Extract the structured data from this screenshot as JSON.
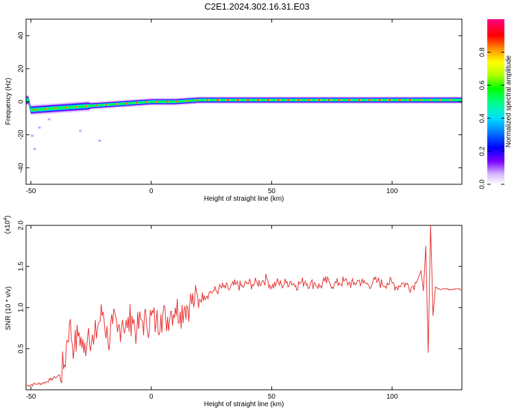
{
  "chart_data": [
    {
      "type": "heatmap",
      "title": "C2E1.2024.302.16.31.E03",
      "xlabel": "Height of straight line (km)",
      "ylabel": "Frequency (Hz)",
      "xlim": [
        -52,
        129
      ],
      "ylim": [
        -50,
        50
      ],
      "x_ticks": [
        -50,
        0,
        50,
        100
      ],
      "y_ticks": [
        -40,
        -20,
        0,
        20,
        40
      ],
      "colorbar": {
        "label": "Normalized spectral amplitude",
        "range": [
          0,
          1
        ],
        "ticks": [
          "0.0",
          "0.2",
          "0.4",
          "0.6",
          "0.8"
        ]
      },
      "ridge": {
        "description_points": [
          [
            -50,
            -5
          ],
          [
            -40,
            -4
          ],
          [
            -30,
            -3
          ],
          [
            -20,
            -2
          ],
          [
            -10,
            -1
          ],
          [
            0,
            0
          ],
          [
            10,
            0
          ],
          [
            20,
            1
          ],
          [
            50,
            1
          ],
          [
            80,
            1
          ],
          [
            100,
            1
          ],
          [
            115,
            1
          ],
          [
            129,
            1
          ]
        ]
      }
    },
    {
      "type": "line",
      "xlabel": "Height of straight line (km)",
      "ylabel": "SNR (10 * v/v)",
      "scale_label": "(x10^4)",
      "xlim": [
        -52,
        129
      ],
      "ylim": [
        0,
        2.0
      ],
      "x_ticks": [
        -50,
        0,
        50,
        100
      ],
      "y_ticks": [
        "0.5",
        "1.0",
        "1.5",
        "2.0"
      ],
      "color": "#e53030",
      "series": [
        {
          "x": [
            -52,
            -48,
            -45,
            -42,
            -40,
            -38,
            -36,
            -35,
            -34,
            -32,
            -30,
            -28,
            -26,
            -24,
            -22,
            -20,
            -18,
            -16,
            -14,
            -12,
            -10,
            -8,
            -6,
            -4,
            -2,
            0,
            2,
            4,
            6,
            8,
            10,
            12,
            14,
            16,
            18,
            20,
            22,
            24,
            26,
            28,
            30,
            32,
            35,
            38,
            40,
            42,
            44,
            46,
            48,
            50,
            52,
            54,
            56,
            58,
            60,
            62,
            64,
            66,
            68,
            70,
            72,
            74,
            76,
            78,
            80,
            82,
            84,
            86,
            88,
            90,
            92,
            94,
            96,
            98,
            100,
            102,
            104,
            106,
            108,
            110,
            112,
            113,
            114,
            115,
            116,
            117,
            118,
            120,
            122,
            124,
            126,
            129
          ],
          "values": [
            0.05,
            0.07,
            0.08,
            0.12,
            0.15,
            0.18,
            0.3,
            0.6,
            0.8,
            0.5,
            0.7,
            0.45,
            0.75,
            0.55,
            0.8,
            0.95,
            0.6,
            0.8,
            0.7,
            0.85,
            0.75,
            0.9,
            0.7,
            0.85,
            0.8,
            0.9,
            0.8,
            0.92,
            0.85,
            0.95,
            1.0,
            0.95,
            1.02,
            1.05,
            1.08,
            1.1,
            1.15,
            1.18,
            1.2,
            1.22,
            1.25,
            1.22,
            1.28,
            1.25,
            1.3,
            1.28,
            1.3,
            1.32,
            1.35,
            1.25,
            1.3,
            1.28,
            1.3,
            1.32,
            1.27,
            1.3,
            1.32,
            1.28,
            1.3,
            1.25,
            1.32,
            1.3,
            1.28,
            1.3,
            1.32,
            1.3,
            1.28,
            1.33,
            1.3,
            1.28,
            1.3,
            1.32,
            1.28,
            1.3,
            1.3,
            1.25,
            1.3,
            1.28,
            1.25,
            1.3,
            1.45,
            1.2,
            1.75,
            0.45,
            2.0,
            0.9,
            1.25,
            1.22,
            1.23,
            1.22,
            1.23,
            1.22
          ]
        }
      ]
    }
  ]
}
